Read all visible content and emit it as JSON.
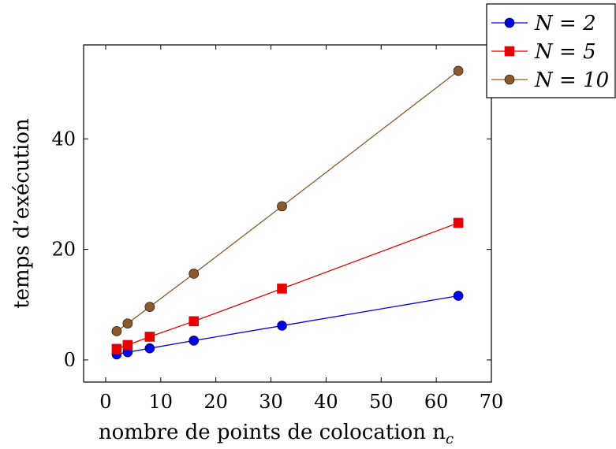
{
  "chart_data": {
    "type": "line",
    "title": "",
    "xlabel": "nombre de points de colocation n",
    "xlabel_subscript": "c",
    "ylabel": "temps d’exécution",
    "xlim": [
      -4,
      70
    ],
    "ylim": [
      -4,
      57
    ],
    "xticks": [
      0,
      10,
      20,
      30,
      40,
      50,
      60,
      70
    ],
    "yticks": [
      0,
      20,
      40
    ],
    "grid": false,
    "legend_position": "top-right-outside",
    "x": [
      2,
      4,
      8,
      16,
      32,
      64
    ],
    "series": [
      {
        "name": "N = 2",
        "color": "#0000e6",
        "marker": "circle",
        "values": [
          1.0,
          1.4,
          2.1,
          3.5,
          6.2,
          11.6
        ]
      },
      {
        "name": "N = 5",
        "color": "#e60000",
        "marker": "square",
        "values": [
          2.0,
          2.7,
          4.2,
          7.0,
          12.9,
          24.8
        ]
      },
      {
        "name": "N = 10",
        "color": "#8c5a2a",
        "marker": "circle",
        "values": [
          5.2,
          6.6,
          9.6,
          15.6,
          27.8,
          52.3
        ]
      }
    ]
  }
}
